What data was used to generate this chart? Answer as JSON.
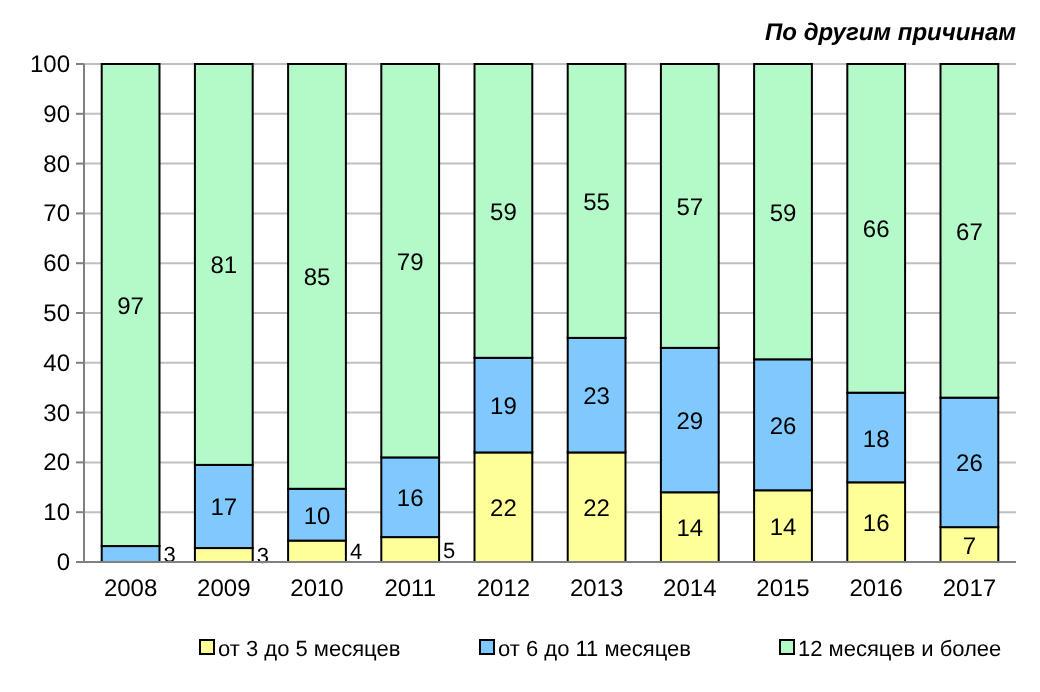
{
  "chart_data": {
    "type": "bar",
    "title": "По другим причинам",
    "stacked": true,
    "categories": [
      "2008",
      "2009",
      "2010",
      "2011",
      "2012",
      "2013",
      "2014",
      "2015",
      "2016",
      "2017"
    ],
    "series": [
      {
        "name": "от 3 до 5 месяцев",
        "color": "#ffff99",
        "values": [
          null,
          2.8,
          4.3,
          5,
          22,
          22,
          14,
          14.4,
          16,
          7
        ],
        "value_labels": [
          null,
          "3",
          "4",
          "5",
          "22",
          "22",
          "14",
          "14",
          "16",
          "7"
        ]
      },
      {
        "name": "от 6 до 11 месяцев",
        "color": "#7fc9ff",
        "values": [
          3.2,
          16.7,
          10.4,
          16,
          19,
          23,
          29,
          26.3,
          18,
          26
        ],
        "value_labels": [
          "3",
          "17",
          "10",
          "16",
          "19",
          "23",
          "29",
          "26",
          "18",
          "26"
        ]
      },
      {
        "name": "12 месяцев и более",
        "color": "#b3fac8",
        "values": [
          96.8,
          80.5,
          85.3,
          79,
          59,
          55,
          57,
          59.3,
          66,
          67
        ],
        "value_labels": [
          "97",
          "81",
          "85",
          "79",
          "59",
          "55",
          "57",
          "59",
          "66",
          "67"
        ]
      }
    ],
    "ylim": [
      0,
      100
    ],
    "yticks": [
      0,
      10,
      20,
      30,
      40,
      50,
      60,
      70,
      80,
      90,
      100
    ],
    "grid": "y",
    "legend": "bottom"
  }
}
